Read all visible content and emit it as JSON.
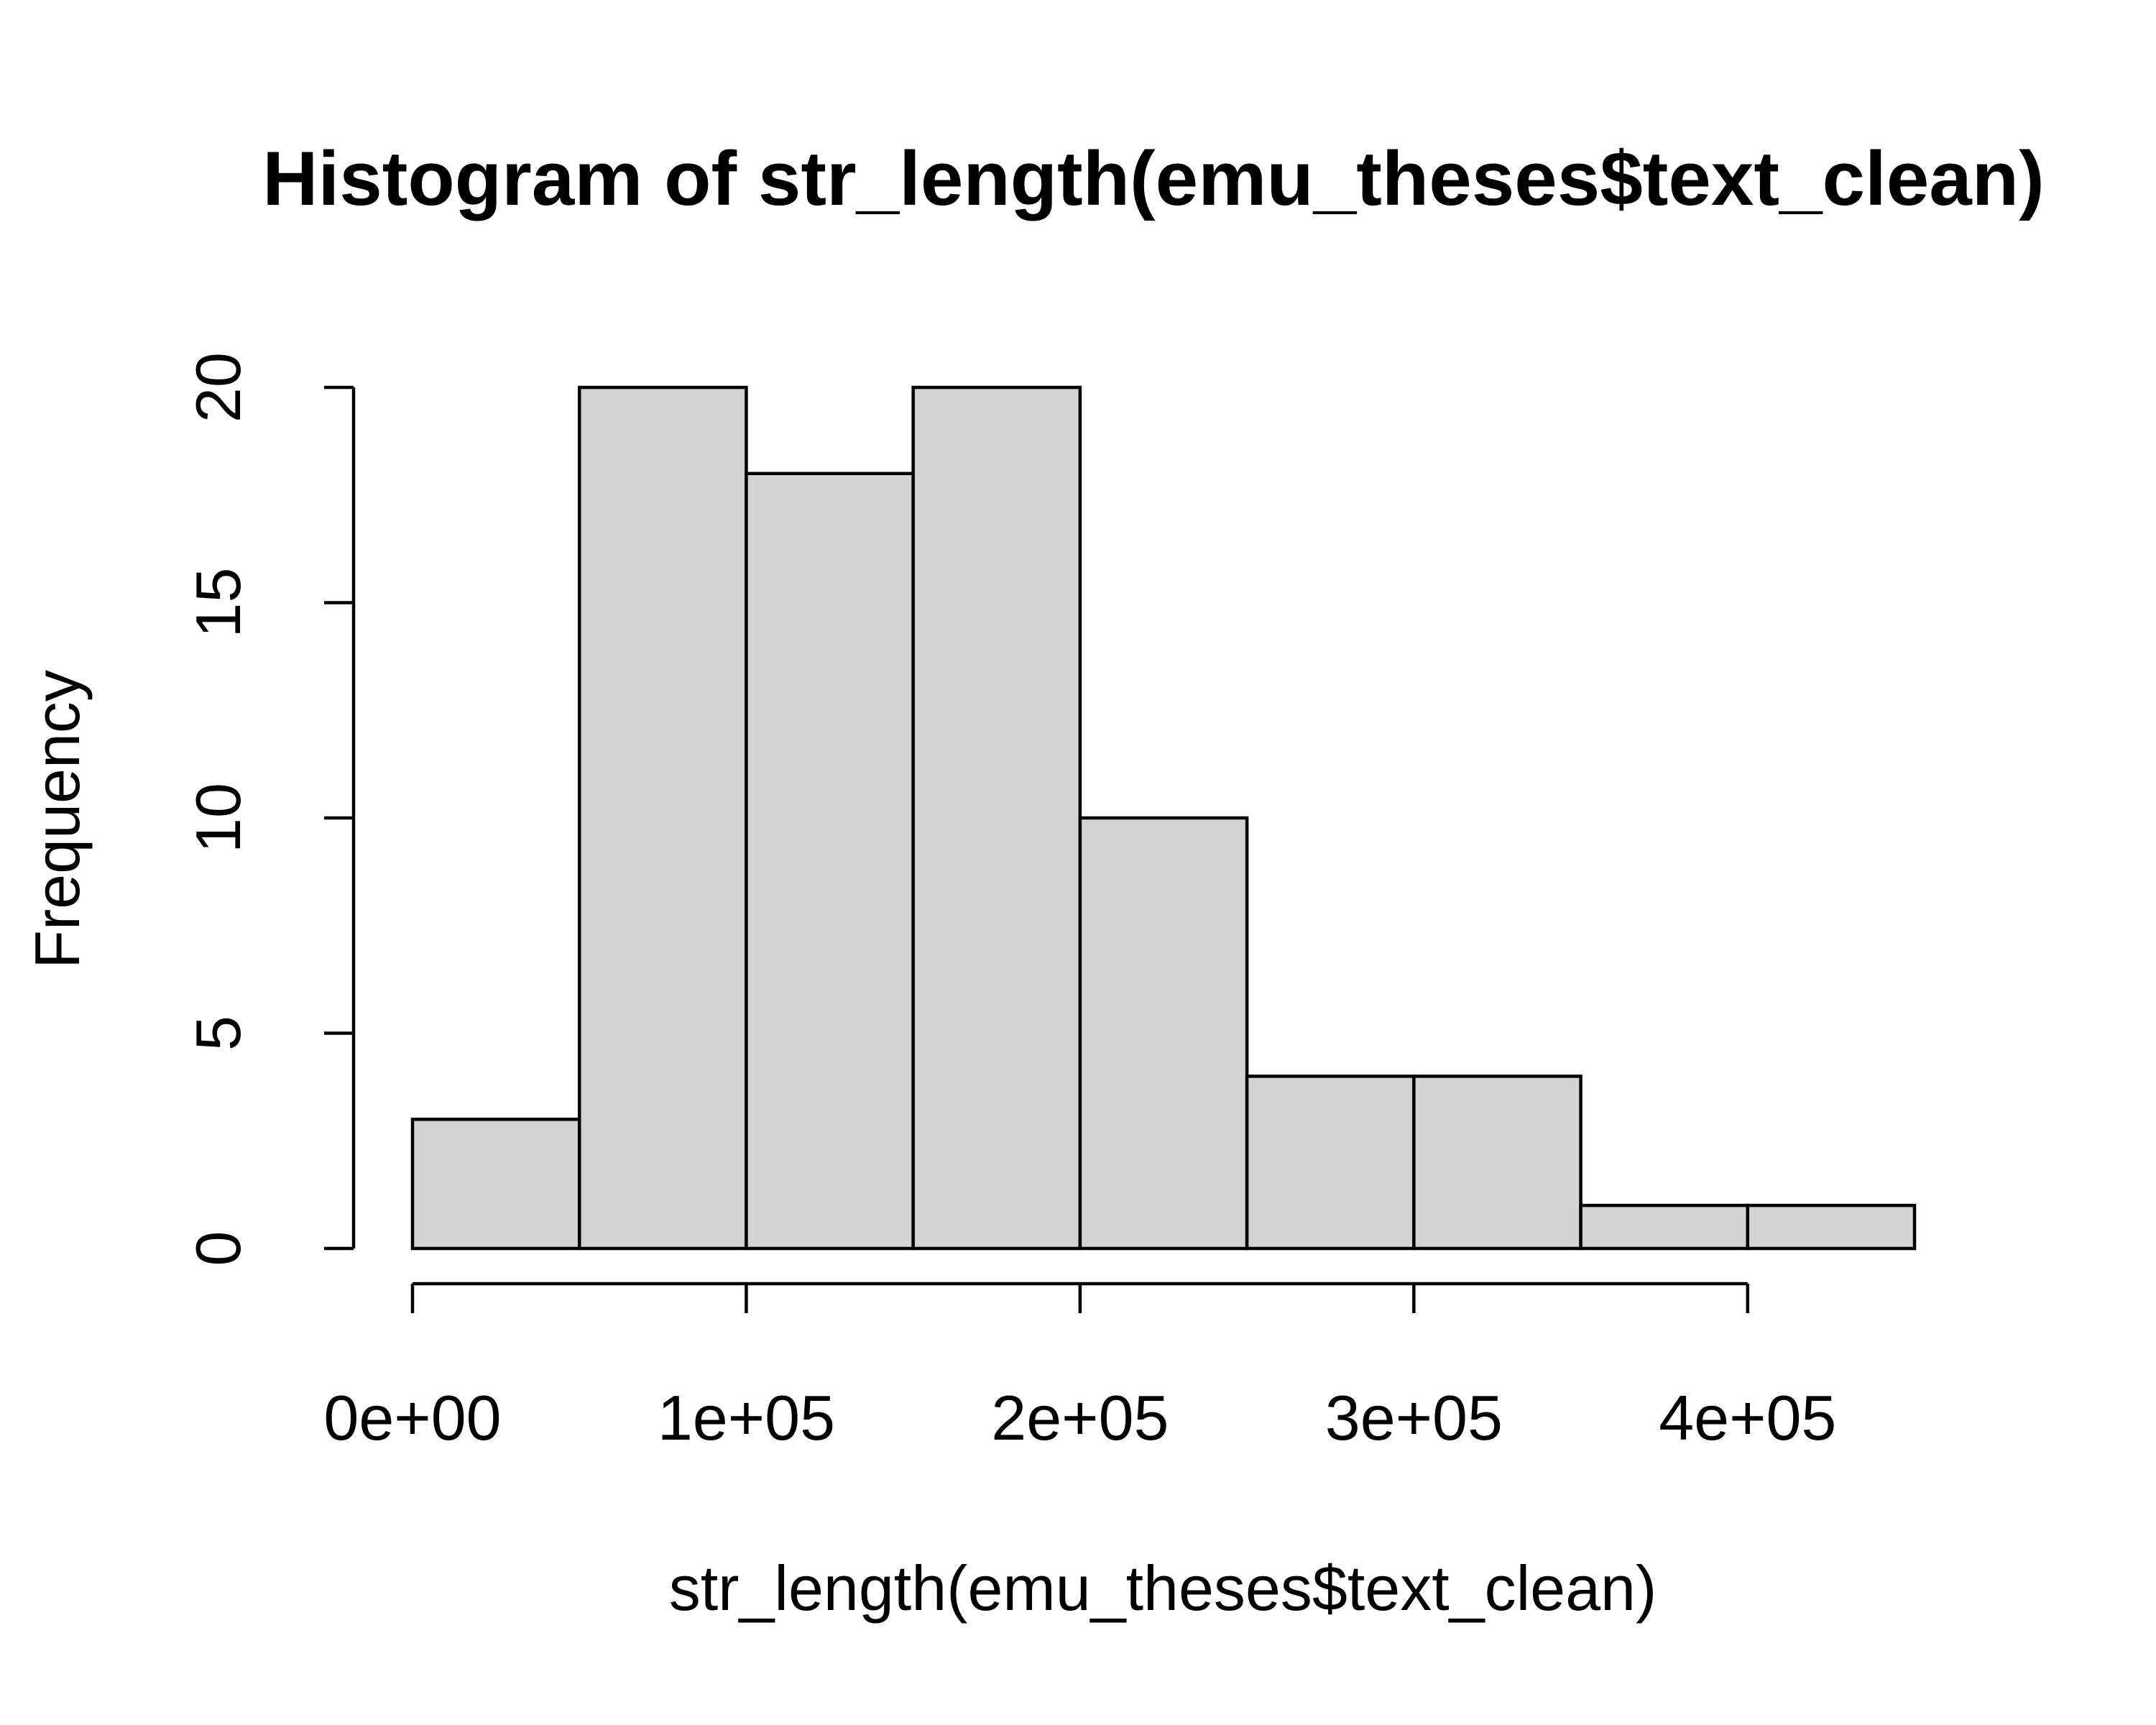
{
  "chart_data": {
    "type": "bar",
    "subtype": "histogram",
    "title": "Histogram of str_length(emu_theses$text_clean)",
    "xlabel": "str_length(emu_theses$text_clean)",
    "ylabel": "Frequency",
    "bins": [
      {
        "start": 0,
        "end": 50000,
        "count": 3
      },
      {
        "start": 50000,
        "end": 100000,
        "count": 20
      },
      {
        "start": 100000,
        "end": 150000,
        "count": 18
      },
      {
        "start": 150000,
        "end": 200000,
        "count": 20
      },
      {
        "start": 200000,
        "end": 250000,
        "count": 10
      },
      {
        "start": 250000,
        "end": 300000,
        "count": 4
      },
      {
        "start": 300000,
        "end": 350000,
        "count": 4
      },
      {
        "start": 350000,
        "end": 400000,
        "count": 1
      },
      {
        "start": 400000,
        "end": 450000,
        "count": 1
      }
    ],
    "xlim": [
      0,
      450000
    ],
    "ylim": [
      0,
      20
    ],
    "x_ticks": [
      {
        "value": 0,
        "label": "0e+00"
      },
      {
        "value": 100000,
        "label": "1e+05"
      },
      {
        "value": 200000,
        "label": "2e+05"
      },
      {
        "value": 300000,
        "label": "3e+05"
      },
      {
        "value": 400000,
        "label": "4e+05"
      }
    ],
    "y_ticks": [
      {
        "value": 0,
        "label": "0"
      },
      {
        "value": 5,
        "label": "5"
      },
      {
        "value": 10,
        "label": "10"
      },
      {
        "value": 15,
        "label": "15"
      },
      {
        "value": 20,
        "label": "20"
      }
    ],
    "grid": false,
    "colors": {
      "bar_fill": "#d3d3d3",
      "bar_stroke": "#000000",
      "axis": "#000000",
      "background": "#ffffff"
    }
  }
}
